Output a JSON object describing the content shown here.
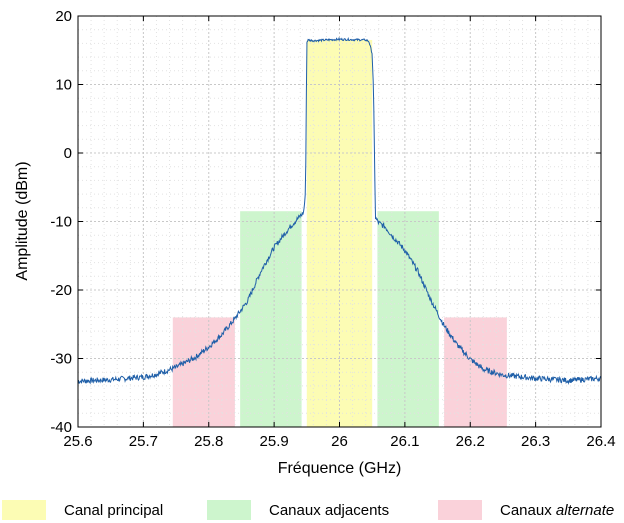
{
  "chart_data": {
    "type": "line",
    "xlabel": "Fréquence (GHz)",
    "ylabel": "Amplitude (dBm)",
    "xlim": [
      25.6,
      26.4
    ],
    "ylim": [
      -40,
      20
    ],
    "xticks": [
      "25.6",
      "25.7",
      "25.8",
      "25.9",
      "26",
      "26.1",
      "26.2",
      "26.3",
      "26.4"
    ],
    "yticks": [
      "-40",
      "-30",
      "-20",
      "-10",
      "0",
      "10",
      "20"
    ],
    "grid": true,
    "line_color": "#1f5fa8",
    "bands": [
      {
        "group": "alternate",
        "x": [
          25.745,
          25.84
        ],
        "top": -24
      },
      {
        "group": "adjacent",
        "x": [
          25.848,
          25.942
        ],
        "top": -8.5
      },
      {
        "group": "principal",
        "x": [
          25.95,
          26.05
        ],
        "top": 16.5
      },
      {
        "group": "adjacent",
        "x": [
          26.058,
          26.152
        ],
        "top": -8.5
      },
      {
        "group": "alternate",
        "x": [
          26.16,
          26.256
        ],
        "top": -24
      }
    ],
    "band_colors": {
      "principal": "#fcfcb4",
      "adjacent": "#cdf5cd",
      "alternate": "#fad2da"
    },
    "series": [
      {
        "x": [
          25.6,
          25.65,
          25.7,
          25.72,
          25.75,
          25.78,
          25.8,
          25.82,
          25.84,
          25.86,
          25.88,
          25.9,
          25.92,
          25.93,
          25.94,
          25.945,
          25.948,
          25.95,
          25.952,
          25.96,
          26.0,
          26.04,
          26.045,
          26.05,
          26.052,
          26.055,
          26.06,
          26.07,
          26.08,
          26.1,
          26.12,
          26.14,
          26.16,
          26.18,
          26.2,
          26.22,
          26.25,
          26.3,
          26.35,
          26.4
        ],
        "y": [
          -33.3,
          -33.1,
          -32.7,
          -32.3,
          -31.3,
          -29.8,
          -28.3,
          -26.5,
          -24.2,
          -21.5,
          -17.2,
          -13.8,
          -11.3,
          -10.2,
          -9.2,
          -8.7,
          -6.0,
          16.2,
          16.5,
          16.4,
          16.6,
          16.5,
          16.3,
          14.5,
          9.0,
          -9.5,
          -10.2,
          -10.8,
          -12.0,
          -14.2,
          -17.3,
          -21.5,
          -25.2,
          -28.0,
          -30.1,
          -31.6,
          -32.4,
          -32.9,
          -33.2,
          -32.9
        ]
      }
    ],
    "legend": {
      "placement": "bottom",
      "entries": [
        {
          "group": "principal",
          "label": "Canal principal",
          "emphasis": ""
        },
        {
          "group": "adjacent",
          "label": "Canaux adjacents",
          "emphasis": ""
        },
        {
          "group": "alternate",
          "label": "Canaux ",
          "emphasis": "alternate"
        }
      ]
    }
  }
}
